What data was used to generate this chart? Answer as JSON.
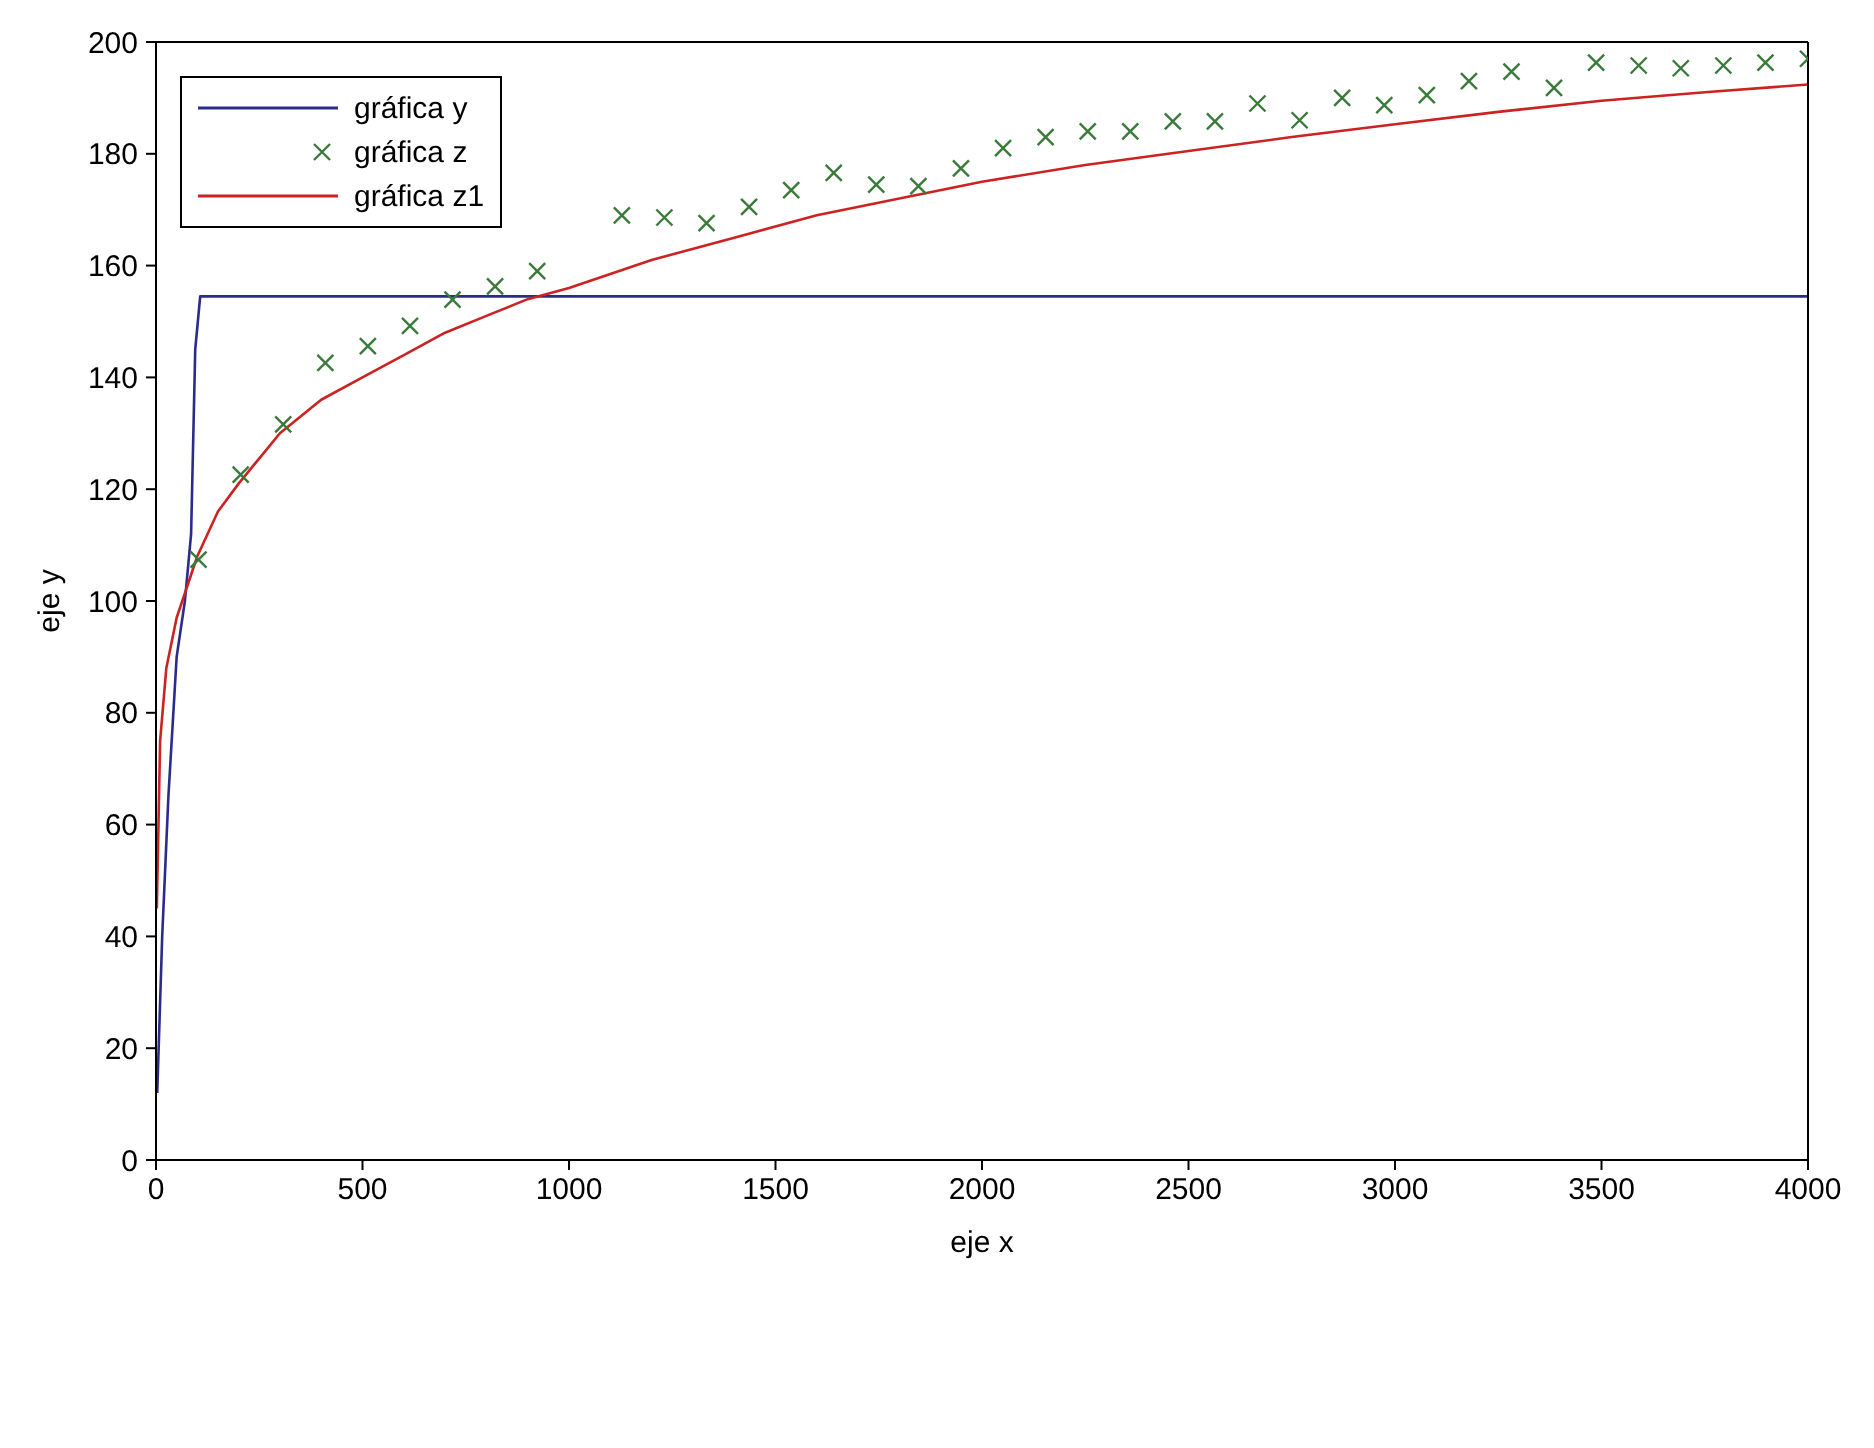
{
  "chart_data": {
    "type": "line",
    "xlabel": "eje x",
    "ylabel": "eje y",
    "xlim": [
      0,
      4000
    ],
    "ylim": [
      0,
      200
    ],
    "xticks": [
      0,
      500,
      1000,
      1500,
      2000,
      2500,
      3000,
      3500,
      4000
    ],
    "yticks": [
      0,
      20,
      40,
      60,
      80,
      100,
      120,
      140,
      160,
      180,
      200
    ],
    "grid": false,
    "legend": "top left",
    "series": [
      {
        "name": "gráfica y",
        "type": "line",
        "color": "#2b2b8c",
        "marker": "none",
        "line_style": "solid",
        "x": [
          3,
          15,
          30,
          50,
          70,
          85,
          95,
          107,
          4000
        ],
        "values": [
          12,
          40,
          65,
          90,
          100,
          112,
          145,
          154.5,
          154.5
        ]
      },
      {
        "name": "gráfica z",
        "type": "scatter",
        "color": "#3a7a3a",
        "marker": "cross",
        "x": [
          103,
          205,
          308,
          410,
          513,
          615,
          718,
          821,
          923,
          1026,
          1128,
          1231,
          1333,
          1436,
          1538,
          1641,
          1744,
          1846,
          1949,
          2051,
          2154,
          2256,
          2359,
          2462,
          2564,
          2667,
          2769,
          2872,
          2974,
          3077,
          3179,
          3282,
          3385,
          3487,
          3590,
          3692,
          3795,
          3897,
          4000
        ],
        "values": [
          107.4,
          122.6,
          131.6,
          142.6,
          145.6,
          149.2,
          153.9,
          156.3,
          159,
          null,
          169,
          168.6,
          167.6,
          170.5,
          173.5,
          176.6,
          174.5,
          174.2,
          177.4,
          181,
          183,
          184,
          184,
          185.8,
          185.8,
          189,
          186,
          190,
          188.7,
          190.5,
          193,
          194.7,
          191.8,
          196.3,
          195.8,
          195.3,
          195.8,
          196.3,
          197
        ]
      },
      {
        "name": "gráfica z1",
        "type": "line",
        "color": "#cc2222",
        "marker": "none",
        "line_style": "solid",
        "x": [
          2,
          10,
          25,
          50,
          100,
          150,
          200,
          300,
          400,
          500,
          600,
          700,
          800,
          900,
          1000,
          1200,
          1400,
          1600,
          1800,
          2000,
          2250,
          2500,
          2750,
          3000,
          3250,
          3500,
          3750,
          4000
        ],
        "values": [
          45,
          75,
          88,
          97,
          108,
          116,
          121,
          130,
          136,
          140,
          144,
          148,
          151,
          154,
          156,
          161,
          165,
          169,
          172,
          175,
          178,
          180.5,
          183,
          185.3,
          187.5,
          189.5,
          191,
          192.4
        ]
      }
    ]
  }
}
